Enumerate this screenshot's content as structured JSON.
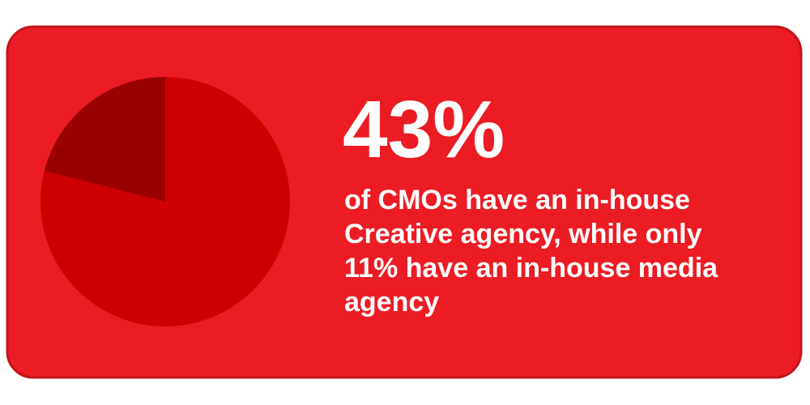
{
  "chart_data": {
    "type": "pie",
    "values": [
      79,
      21
    ],
    "colors": [
      "#cc0000",
      "#990000"
    ]
  },
  "stat": {
    "headline": "43%",
    "lines": [
      "of CMOs have an in-house",
      "Creative agency, while only",
      "11% have an in-house media",
      "agency"
    ]
  }
}
